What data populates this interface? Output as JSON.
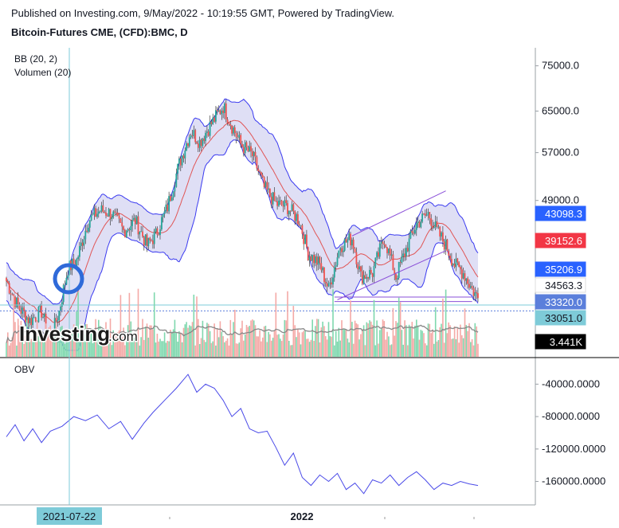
{
  "header": {
    "published": "Published on Investing.com, 9/May/2022 - 10:19:55 GMT, Powered by TradingView.",
    "title": "Bitcoin-Futures CME, (CFD):BMC, D"
  },
  "brand": {
    "logo_text": "Investing",
    "logo_suffix": ".com"
  },
  "chart_data": [
    {
      "type": "candlestick",
      "title": "Bitcoin-Futures CME, (CFD):BMC, D",
      "indicators": [
        "BB (20, 2)",
        "Volumen (20)"
      ],
      "y_scale": "log",
      "ylim": [
        30500,
        79000
      ],
      "y_ticks": [
        "75000.0",
        "65000.0",
        "57000.0",
        "49000.0"
      ],
      "y_tick_values": [
        75000,
        65000,
        57000,
        49000
      ],
      "x_labels": [
        "2021-07-22",
        "2022"
      ],
      "close_path": [
        [
          0,
          38000
        ],
        [
          8,
          35000
        ],
        [
          16,
          33500
        ],
        [
          24,
          34500
        ],
        [
          30,
          31500
        ],
        [
          36,
          34500
        ],
        [
          42,
          39500
        ],
        [
          48,
          40500
        ],
        [
          56,
          46000
        ],
        [
          64,
          47500
        ],
        [
          72,
          47000
        ],
        [
          80,
          44500
        ],
        [
          88,
          46000
        ],
        [
          96,
          42500
        ],
        [
          102,
          44000
        ],
        [
          110,
          48000
        ],
        [
          118,
          55000
        ],
        [
          126,
          61000
        ],
        [
          132,
          59000
        ],
        [
          140,
          62500
        ],
        [
          148,
          66000
        ],
        [
          154,
          62000
        ],
        [
          160,
          58500
        ],
        [
          168,
          56500
        ],
        [
          176,
          51000
        ],
        [
          184,
          48500
        ],
        [
          192,
          48000
        ],
        [
          200,
          46000
        ],
        [
          206,
          41500
        ],
        [
          214,
          40000
        ],
        [
          220,
          37000
        ],
        [
          228,
          42500
        ],
        [
          236,
          43500
        ],
        [
          242,
          38500
        ],
        [
          250,
          39000
        ],
        [
          258,
          43500
        ],
        [
          266,
          38500
        ],
        [
          272,
          41500
        ],
        [
          280,
          45500
        ],
        [
          288,
          47000
        ],
        [
          294,
          44500
        ],
        [
          300,
          42500
        ],
        [
          306,
          40000
        ],
        [
          312,
          39000
        ],
        [
          318,
          37000
        ],
        [
          322,
          36000
        ]
      ],
      "price_labels": [
        {
          "text": "43098.3",
          "value": 43098.3,
          "color": "#2962ff",
          "text_color": "#ffffff"
        },
        {
          "text": "39152.6",
          "value": 39152.6,
          "color": "#f23645",
          "text_color": "#ffffff"
        },
        {
          "text": "35206.9",
          "value": 35206.9,
          "color": "#2962ff",
          "text_color": "#ffffff"
        },
        {
          "text": "34563.3",
          "value": 34563.3,
          "color": "#ffffff",
          "text_color": "#131722"
        },
        {
          "text": "33320.0",
          "value": 33320.0,
          "color": "#5b7fdb",
          "text_color": "#ffffff"
        },
        {
          "text": "33051.0",
          "value": 33051.0,
          "color": "#7ecbd8",
          "text_color": "#131722"
        },
        {
          "text": "3.441K",
          "value": 3441,
          "color": "#000000",
          "text_color": "#ffffff"
        }
      ],
      "colors": {
        "up": "#26a69a",
        "down": "#ef5350",
        "bb_fill": "#c9c9ee",
        "bb_line": "#3a3af0",
        "ma": "#e05555"
      }
    },
    {
      "type": "line",
      "title": "OBV",
      "ylim": [
        -185000,
        -20000
      ],
      "y_ticks": [
        "-40000.0000",
        "-80000.0000",
        "-120000.0000",
        "-160000.0000"
      ],
      "y_tick_values": [
        -40000,
        -80000,
        -120000,
        -160000
      ],
      "color": "#4a4ae8",
      "x": [
        0,
        6,
        12,
        18,
        24,
        30,
        38,
        46,
        54,
        62,
        70,
        78,
        86,
        94,
        100,
        108,
        116,
        124,
        130,
        136,
        142,
        148,
        154,
        160,
        166,
        172,
        178,
        184,
        190,
        196,
        202,
        208,
        214,
        220,
        226,
        232,
        238,
        244,
        250,
        256,
        262,
        268,
        274,
        280,
        286,
        292,
        298,
        304,
        310,
        316,
        322
      ],
      "y": [
        -105000,
        -90000,
        -110000,
        -95000,
        -112000,
        -98000,
        -92000,
        -80000,
        -85000,
        -78000,
        -95000,
        -86000,
        -108000,
        -88000,
        -75000,
        -60000,
        -45000,
        -28000,
        -50000,
        -40000,
        -45000,
        -60000,
        -80000,
        -70000,
        -95000,
        -100000,
        -98000,
        -118000,
        -140000,
        -125000,
        -155000,
        -165000,
        -152000,
        -160000,
        -150000,
        -170000,
        -162000,
        -175000,
        -158000,
        -162000,
        -152000,
        -165000,
        -155000,
        -148000,
        -158000,
        -170000,
        -162000,
        -165000,
        -160000,
        -163000,
        -165000
      ]
    }
  ]
}
